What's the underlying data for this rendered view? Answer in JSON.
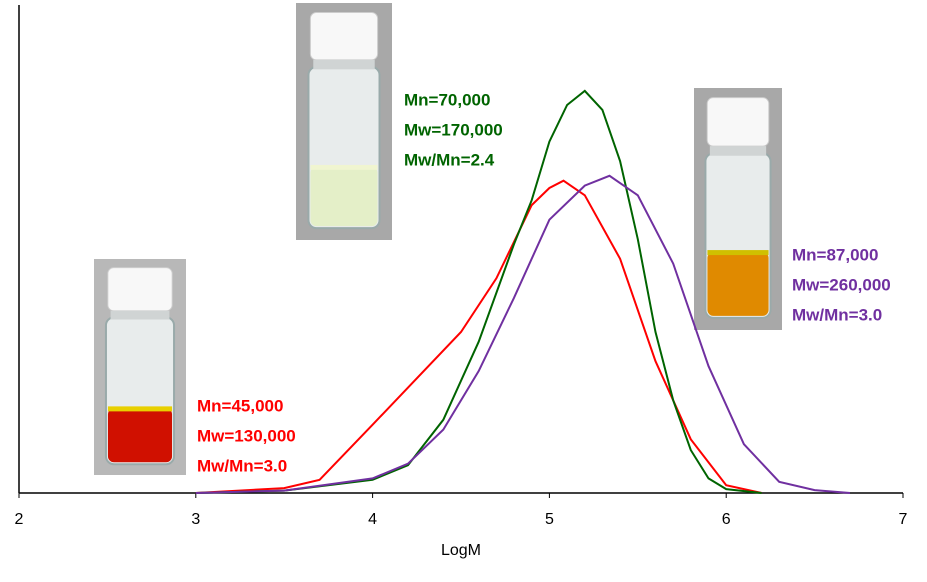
{
  "chart_data": {
    "type": "line",
    "x_label": "LogM",
    "xlim": [
      2,
      7
    ],
    "xticks": [
      2,
      3,
      4,
      5,
      6,
      7
    ],
    "ylim": [
      0,
      1
    ],
    "grid": false,
    "series": [
      {
        "color": "#ff0000",
        "annotation": [
          "Mn=45,000",
          "Mw=130,000",
          "Mw/Mn=3.0"
        ],
        "x": [
          3.0,
          3.5,
          3.7,
          4.0,
          4.5,
          4.7,
          4.9,
          5.0,
          5.08,
          5.2,
          5.4,
          5.6,
          5.8,
          6.0,
          6.2
        ],
        "values": [
          0,
          0.01,
          0.027,
          0.14,
          0.33,
          0.44,
          0.59,
          0.625,
          0.64,
          0.61,
          0.48,
          0.27,
          0.11,
          0.016,
          0
        ]
      },
      {
        "color": "#006400",
        "annotation": [
          "Mn=70,000",
          "Mw=170,000",
          "Mw/Mn=2.4"
        ],
        "x": [
          3.0,
          3.5,
          4.0,
          4.2,
          4.4,
          4.6,
          4.8,
          4.9,
          5.0,
          5.1,
          5.2,
          5.3,
          5.4,
          5.5,
          5.6,
          5.7,
          5.8,
          5.9,
          6.0,
          6.2
        ],
        "values": [
          0,
          0.005,
          0.027,
          0.057,
          0.15,
          0.31,
          0.51,
          0.6,
          0.72,
          0.795,
          0.824,
          0.785,
          0.68,
          0.52,
          0.33,
          0.19,
          0.088,
          0.03,
          0.008,
          0
        ]
      },
      {
        "color": "#7030a0",
        "annotation": [
          "Mn=87,000",
          "Mw=260,000",
          "Mw/Mn=3.0"
        ],
        "x": [
          3.0,
          3.5,
          4.0,
          4.2,
          4.4,
          4.6,
          4.8,
          5.0,
          5.2,
          5.34,
          5.5,
          5.7,
          5.9,
          6.1,
          6.3,
          6.5,
          6.7
        ],
        "values": [
          0,
          0.005,
          0.03,
          0.06,
          0.13,
          0.25,
          0.4,
          0.56,
          0.63,
          0.65,
          0.61,
          0.47,
          0.26,
          0.1,
          0.023,
          0.006,
          0
        ]
      }
    ]
  }
}
